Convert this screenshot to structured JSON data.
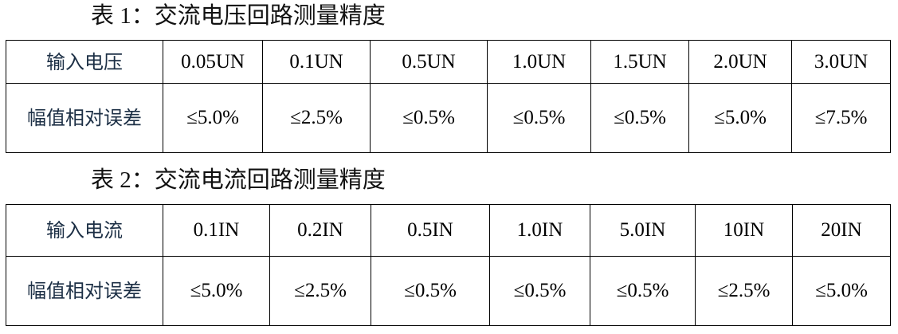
{
  "tables": [
    {
      "caption": "表 1：交流电压回路测量精度",
      "header_label": "输入电压",
      "headers": [
        "0.05UN",
        "0.1UN",
        "0.5UN",
        "1.0UN",
        "1.5UN",
        "2.0UN",
        "3.0UN"
      ],
      "row_label": "幅值相对误差",
      "values": [
        "≤5.0%",
        "≤2.5%",
        "≤0.5%",
        "≤0.5%",
        "≤0.5%",
        "≤5.0%",
        "≤7.5%"
      ]
    },
    {
      "caption": "表 2：交流电流回路测量精度",
      "header_label": "输入电流",
      "headers": [
        "0.1IN",
        "0.2IN",
        "0.5IN",
        "1.0IN",
        "5.0IN",
        "10IN",
        "20IN"
      ],
      "row_label": "幅值相对误差",
      "values": [
        "≤5.0%",
        "≤2.5%",
        "≤0.5%",
        "≤0.5%",
        "≤0.5%",
        "≤2.5%",
        "≤5.0%"
      ]
    }
  ]
}
